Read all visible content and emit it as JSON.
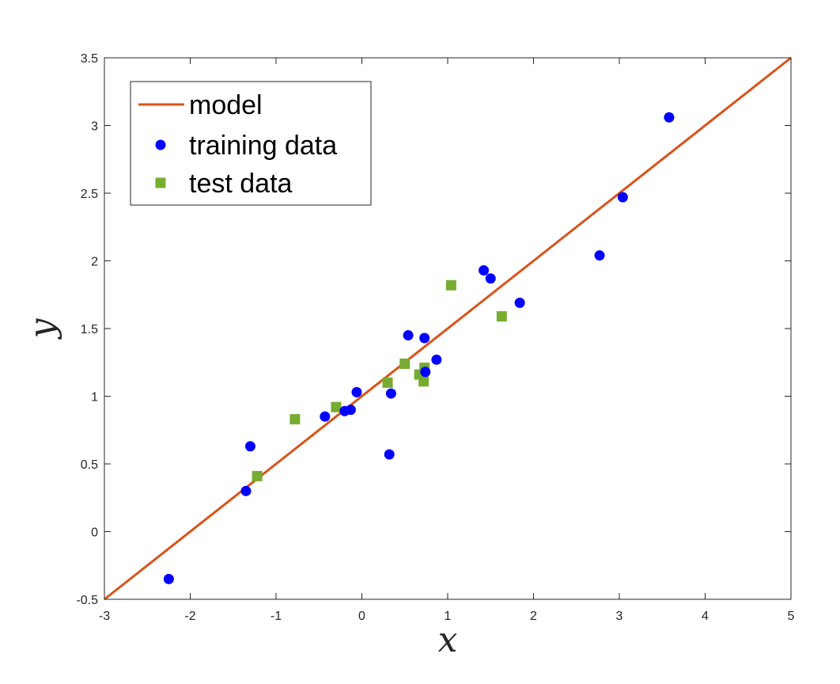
{
  "chart_data": {
    "type": "scatter",
    "title": "",
    "xlabel": "x",
    "ylabel": "y",
    "xlim": [
      -3,
      5
    ],
    "ylim": [
      -0.5,
      3.5
    ],
    "xticks": [
      -3,
      -2,
      -1,
      0,
      1,
      2,
      3,
      4,
      5
    ],
    "yticks": [
      -0.5,
      0,
      0.5,
      1,
      1.5,
      2,
      2.5,
      3,
      3.5
    ],
    "grid": false,
    "legend_position": "top-left",
    "series": [
      {
        "name": "model",
        "kind": "line",
        "color": "#D95319",
        "points": [
          [
            -3,
            -0.5
          ],
          [
            5,
            3.5
          ]
        ]
      },
      {
        "name": "training data",
        "kind": "marker-circle",
        "color": "#0000FF",
        "points": [
          [
            -2.25,
            -0.35
          ],
          [
            -1.35,
            0.3
          ],
          [
            -1.3,
            0.63
          ],
          [
            -0.43,
            0.85
          ],
          [
            -0.2,
            0.89
          ],
          [
            -0.13,
            0.9
          ],
          [
            -0.06,
            1.03
          ],
          [
            0.32,
            0.57
          ],
          [
            0.34,
            1.02
          ],
          [
            0.54,
            1.45
          ],
          [
            0.73,
            1.43
          ],
          [
            0.74,
            1.18
          ],
          [
            0.87,
            1.27
          ],
          [
            1.42,
            1.93
          ],
          [
            1.5,
            1.87
          ],
          [
            1.84,
            1.69
          ],
          [
            2.77,
            2.04
          ],
          [
            3.04,
            2.47
          ],
          [
            3.58,
            3.06
          ]
        ]
      },
      {
        "name": "test data",
        "kind": "marker-square",
        "color": "#77AC30",
        "points": [
          [
            -1.22,
            0.41
          ],
          [
            -0.78,
            0.83
          ],
          [
            -0.3,
            0.92
          ],
          [
            0.3,
            1.1
          ],
          [
            0.5,
            1.24
          ],
          [
            0.67,
            1.16
          ],
          [
            0.72,
            1.11
          ],
          [
            0.73,
            1.21
          ],
          [
            1.04,
            1.82
          ],
          [
            1.63,
            1.59
          ]
        ]
      }
    ]
  }
}
